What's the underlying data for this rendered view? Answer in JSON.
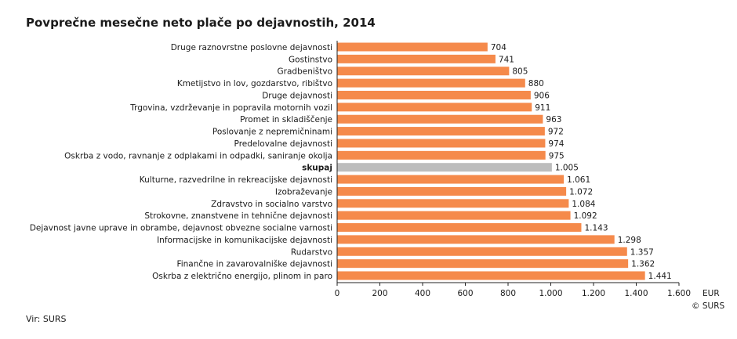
{
  "chart_data": {
    "type": "bar",
    "orientation": "horizontal",
    "title": "Povprečne mesečne neto plače po dejavnostih, 2014",
    "xlabel": "EUR",
    "xlim": [
      0,
      1600
    ],
    "xticks": [
      0,
      200,
      400,
      600,
      800,
      1000,
      1200,
      1400,
      1600
    ],
    "xtick_labels": [
      "0",
      "200",
      "400",
      "600",
      "800",
      "1.000",
      "1.200",
      "1.400",
      "1.600"
    ],
    "grid": false,
    "categories": [
      "Druge raznovrstne poslovne dejavnosti",
      "Gostinstvo",
      "Gradbeništvo",
      "Kmetijstvo in lov, gozdarstvo, ribištvo",
      "Druge dejavnosti",
      "Trgovina, vzdrževanje in popravila motornih vozil",
      "Promet in skladiščenje",
      "Poslovanje z nepremičninami",
      "Predelovalne dejavnosti",
      "Oskrba z vodo, ravnanje z odplakami in odpadki, saniranje okolja",
      "skupaj",
      "Kulturne, razvedrilne in rekreacijske dejavnosti",
      "Izobraževanje",
      "Zdravstvo in socialno varstvo",
      "Strokovne, znanstvene in tehnične dejavnosti",
      "Dejavnost javne uprave in obrambe, dejavnost obvezne socialne varnosti",
      "Informacijske in komunikacijske dejavnosti",
      "Rudarstvo",
      "Finančne in zavarovalniške dejavnosti",
      "Oskrba z električno energijo, plinom in paro"
    ],
    "values": [
      704,
      741,
      805,
      880,
      906,
      911,
      963,
      972,
      974,
      975,
      1005,
      1061,
      1072,
      1084,
      1092,
      1143,
      1298,
      1357,
      1362,
      1441
    ],
    "value_labels": [
      "704",
      "741",
      "805",
      "880",
      "906",
      "911",
      "963",
      "972",
      "974",
      "975",
      "1.005",
      "1.061",
      "1.072",
      "1.084",
      "1.092",
      "1.143",
      "1.298",
      "1.357",
      "1.362",
      "1.441"
    ],
    "highlight_category": "skupaj",
    "colors": {
      "bar": "#f58a4b",
      "highlight": "#bdbdbd"
    }
  },
  "copyright": "© SURS",
  "source": "Vir: SURS"
}
